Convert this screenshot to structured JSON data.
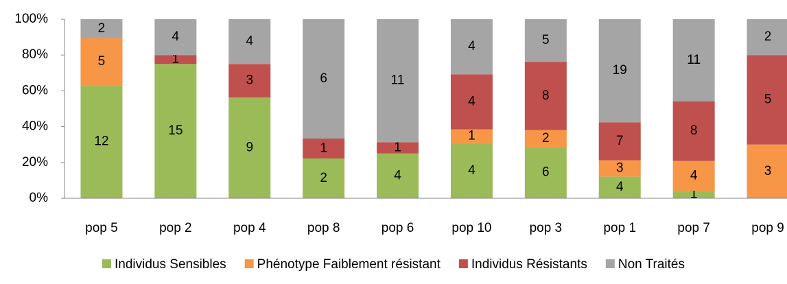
{
  "chart_data": {
    "type": "bar",
    "stacking": "percent",
    "categories": [
      "pop 5",
      "pop 2",
      "pop 4",
      "pop 8",
      "pop 6",
      "pop 10",
      "pop 3",
      "pop 1",
      "pop 7",
      "pop 9"
    ],
    "series": [
      {
        "name": "Individus Sensibles",
        "color": "#9bbb59",
        "values": [
          12,
          15,
          9,
          2,
          4,
          4,
          6,
          4,
          1,
          null
        ]
      },
      {
        "name": "Phénotype Faiblement résistant",
        "color": "#f79646",
        "values": [
          5,
          null,
          null,
          null,
          null,
          1,
          2,
          3,
          4,
          3
        ]
      },
      {
        "name": "Individus Résistants",
        "color": "#c0504d",
        "values": [
          null,
          1,
          3,
          1,
          1,
          4,
          8,
          7,
          8,
          5
        ]
      },
      {
        "name": "Non Traités",
        "color": "#a5a5a5",
        "values": [
          2,
          4,
          4,
          6,
          11,
          4,
          5,
          19,
          11,
          2
        ]
      }
    ],
    "ylim": [
      0,
      100
    ],
    "yticks": [
      {
        "value": 0,
        "label": "0%"
      },
      {
        "value": 20,
        "label": "20%"
      },
      {
        "value": 40,
        "label": "40%"
      },
      {
        "value": 60,
        "label": "60%"
      },
      {
        "value": 80,
        "label": "80%"
      },
      {
        "value": 100,
        "label": "100%"
      }
    ],
    "legend": "bottom"
  }
}
